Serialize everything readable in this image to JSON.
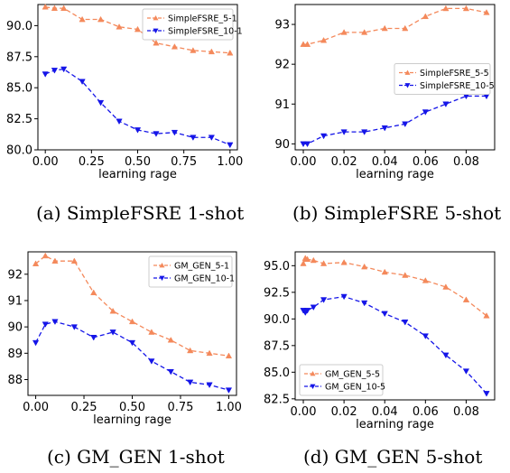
{
  "colors": {
    "series_a": "#f4895b",
    "series_b": "#1515e8"
  },
  "chart_data": [
    {
      "type": "line",
      "caption": "(a)  SimpleFSRE 1-shot",
      "xlabel": "learning rage",
      "ylabel": "",
      "xlim": [
        -0.04,
        1.04
      ],
      "ylim": [
        80.0,
        91.7
      ],
      "xticks": [
        "0.00",
        "0.25",
        "0.50",
        "0.75",
        "1.00"
      ],
      "yticks": [
        "80.0",
        "82.5",
        "85.0",
        "87.5",
        "90.0"
      ],
      "legend_position": "top-right",
      "x": [
        0.0,
        0.05,
        0.1,
        0.2,
        0.3,
        0.4,
        0.5,
        0.6,
        0.7,
        0.8,
        0.9,
        1.0
      ],
      "series": [
        {
          "name": "SimpleFSRE_5-1",
          "marker": "triangle-up",
          "values": [
            91.5,
            91.4,
            91.4,
            90.5,
            90.5,
            89.9,
            89.7,
            88.6,
            88.3,
            88.0,
            87.9,
            87.8
          ]
        },
        {
          "name": "SimpleFSRE_10-1",
          "marker": "triangle-down",
          "values": [
            86.1,
            86.4,
            86.5,
            85.5,
            83.8,
            82.3,
            81.6,
            81.3,
            81.4,
            81.0,
            81.0,
            80.4
          ]
        }
      ]
    },
    {
      "type": "line",
      "caption": "(b)  SimpleFSRE 5-shot",
      "xlabel": "learning rage",
      "ylabel": "",
      "xlim": [
        -0.004,
        0.094
      ],
      "ylim": [
        89.85,
        93.5
      ],
      "xticks": [
        "0.00",
        "0.02",
        "0.04",
        "0.06",
        "0.08"
      ],
      "yticks": [
        "90",
        "91",
        "92",
        "93"
      ],
      "legend_position": "center-right",
      "x": [
        0.0,
        0.002,
        0.01,
        0.02,
        0.03,
        0.04,
        0.05,
        0.06,
        0.07,
        0.08,
        0.09
      ],
      "series": [
        {
          "name": "SimpleFSRE_5-5",
          "marker": "triangle-up",
          "values": [
            92.5,
            92.5,
            92.6,
            92.8,
            92.8,
            92.9,
            92.9,
            93.2,
            93.4,
            93.4,
            93.3
          ]
        },
        {
          "name": "SimpleFSRE_10-5",
          "marker": "triangle-down",
          "values": [
            90.0,
            90.0,
            90.2,
            90.3,
            90.3,
            90.4,
            90.5,
            90.8,
            91.0,
            91.2,
            91.2
          ]
        }
      ]
    },
    {
      "type": "line",
      "caption": "(c)  GM_GEN 1-shot",
      "xlabel": "learning rage",
      "ylabel": "",
      "xlim": [
        -0.04,
        1.04
      ],
      "ylim": [
        87.4,
        92.85
      ],
      "xticks": [
        "0.00",
        "0.25",
        "0.50",
        "0.75",
        "1.00"
      ],
      "yticks": [
        "88",
        "89",
        "90",
        "91",
        "92"
      ],
      "legend_position": "top-right",
      "x": [
        0.0,
        0.05,
        0.1,
        0.2,
        0.3,
        0.4,
        0.5,
        0.6,
        0.7,
        0.8,
        0.9,
        1.0
      ],
      "series": [
        {
          "name": "GM_GEN_5-1",
          "marker": "triangle-up",
          "values": [
            92.4,
            92.7,
            92.5,
            92.5,
            91.3,
            90.6,
            90.2,
            89.8,
            89.5,
            89.1,
            89.0,
            88.9
          ]
        },
        {
          "name": "GM_GEN_10-1",
          "marker": "triangle-down",
          "values": [
            89.4,
            90.1,
            90.2,
            90.0,
            89.6,
            89.8,
            89.4,
            88.7,
            88.3,
            87.9,
            87.8,
            87.6
          ]
        }
      ]
    },
    {
      "type": "line",
      "caption": "(d)  GM_GEN 5-shot",
      "xlabel": "learning rage",
      "ylabel": "",
      "xlim": [
        -0.004,
        0.094
      ],
      "ylim": [
        82.4,
        96.3
      ],
      "xticks": [
        "0.00",
        "0.02",
        "0.04",
        "0.06",
        "0.08"
      ],
      "yticks": [
        "82.5",
        "85.0",
        "87.5",
        "90.0",
        "92.5",
        "95.0"
      ],
      "legend_position": "bottom-left",
      "x": [
        0.0,
        0.001,
        0.002,
        0.005,
        0.01,
        0.02,
        0.03,
        0.04,
        0.05,
        0.06,
        0.07,
        0.08,
        0.09
      ],
      "series": [
        {
          "name": "GM_GEN_5-5",
          "marker": "triangle-up",
          "values": [
            95.2,
            95.7,
            95.6,
            95.5,
            95.2,
            95.3,
            94.9,
            94.4,
            94.1,
            93.6,
            93.0,
            91.8,
            90.3
          ]
        },
        {
          "name": "GM_GEN_10-5",
          "marker": "triangle-down",
          "values": [
            90.8,
            90.6,
            90.8,
            91.1,
            91.8,
            92.1,
            91.5,
            90.5,
            89.7,
            88.4,
            86.6,
            85.1,
            83.0
          ]
        }
      ]
    }
  ]
}
